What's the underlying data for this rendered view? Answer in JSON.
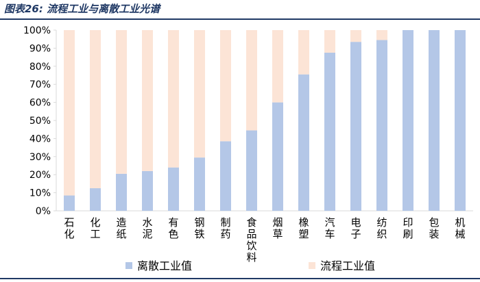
{
  "figure_title": "图表26:  流程工业与离散工业光谱",
  "colors": {
    "title": "#1f3864",
    "discrete": "#b4c7e7",
    "process": "#fce4d6",
    "axis": "#d9d9d9"
  },
  "chart_data": {
    "type": "bar",
    "stacked": true,
    "percent": true,
    "categories": [
      "石化",
      "化工",
      "造纸",
      "水泥",
      "有色",
      "钢铁",
      "制药",
      "食品饮料",
      "烟草",
      "橡塑",
      "汽车",
      "电子",
      "纺织",
      "印刷",
      "包装",
      "机械"
    ],
    "series": [
      {
        "name": "离散工业值",
        "values": [
          8.5,
          12.5,
          20.5,
          22,
          24,
          29.5,
          38.5,
          44.5,
          60,
          75.5,
          87.5,
          93.5,
          94.5,
          100,
          100,
          100
        ]
      },
      {
        "name": "流程工业值",
        "values": [
          91.5,
          87.5,
          79.5,
          78,
          76,
          70.5,
          61.5,
          55.5,
          40,
          24.5,
          12.5,
          6.5,
          5.5,
          0,
          0,
          0
        ]
      }
    ],
    "ylim": [
      0,
      100
    ],
    "yticks": [
      "0%",
      "10%",
      "20%",
      "30%",
      "40%",
      "50%",
      "60%",
      "70%",
      "80%",
      "90%",
      "100%"
    ],
    "legend_position": "bottom"
  }
}
